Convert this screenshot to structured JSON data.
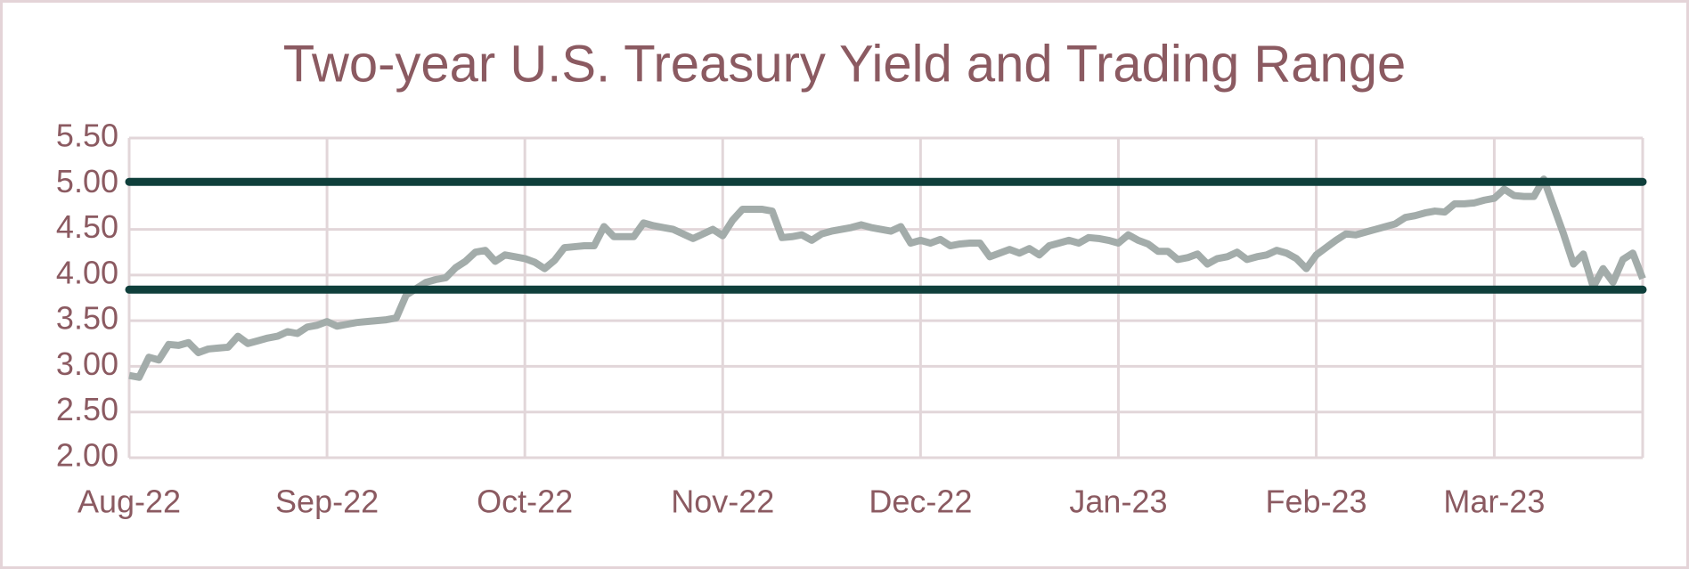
{
  "chart_data": {
    "type": "line",
    "title": "Two-year U.S. Treasury Yield and Trading Range",
    "categories": [
      "Aug-22",
      null,
      null,
      null,
      null,
      null,
      null,
      null,
      null,
      null,
      null,
      null,
      null,
      null,
      null,
      null,
      null,
      null,
      null,
      null,
      "Sep-22",
      null,
      null,
      null,
      null,
      null,
      null,
      null,
      null,
      null,
      null,
      null,
      null,
      null,
      null,
      null,
      null,
      null,
      null,
      null,
      "Oct-22",
      null,
      null,
      null,
      null,
      null,
      null,
      null,
      null,
      null,
      null,
      null,
      null,
      null,
      null,
      null,
      null,
      null,
      null,
      null,
      "Nov-22",
      null,
      null,
      null,
      null,
      null,
      null,
      null,
      null,
      null,
      null,
      null,
      null,
      null,
      null,
      null,
      null,
      null,
      null,
      null,
      "Dec-22",
      null,
      null,
      null,
      null,
      null,
      null,
      null,
      null,
      null,
      null,
      null,
      null,
      null,
      null,
      null,
      null,
      null,
      null,
      null,
      "Jan-23",
      null,
      null,
      null,
      null,
      null,
      null,
      null,
      null,
      null,
      null,
      null,
      null,
      null,
      null,
      null,
      null,
      null,
      null,
      null,
      "Feb-23",
      null,
      null,
      null,
      null,
      null,
      null,
      null,
      null,
      null,
      null,
      null,
      null,
      null,
      null,
      null,
      null,
      null,
      "Mar-23",
      null,
      null,
      null,
      null,
      null,
      null,
      null,
      null,
      null,
      null,
      null,
      null,
      null,
      null,
      null
    ],
    "values": [
      2.9,
      2.88,
      3.1,
      3.07,
      3.24,
      3.23,
      3.26,
      3.15,
      3.19,
      3.2,
      3.21,
      3.33,
      3.25,
      3.28,
      3.31,
      3.33,
      3.38,
      3.36,
      3.43,
      3.45,
      3.49,
      3.44,
      3.46,
      3.48,
      3.49,
      3.5,
      3.51,
      3.53,
      3.78,
      3.85,
      3.92,
      3.95,
      3.97,
      4.08,
      4.15,
      4.25,
      4.27,
      4.15,
      4.22,
      4.2,
      4.18,
      4.14,
      4.07,
      4.16,
      4.3,
      4.31,
      4.32,
      4.32,
      4.53,
      4.42,
      4.42,
      4.42,
      4.57,
      4.54,
      4.52,
      4.5,
      4.45,
      4.4,
      4.45,
      4.5,
      4.43,
      4.6,
      4.72,
      4.72,
      4.72,
      4.7,
      4.41,
      4.42,
      4.44,
      4.38,
      4.45,
      4.48,
      4.5,
      4.52,
      4.55,
      4.52,
      4.5,
      4.48,
      4.53,
      4.35,
      4.38,
      4.35,
      4.39,
      4.32,
      4.34,
      4.35,
      4.35,
      4.2,
      4.24,
      4.28,
      4.24,
      4.29,
      4.22,
      4.32,
      4.35,
      4.38,
      4.35,
      4.41,
      4.4,
      4.38,
      4.35,
      4.44,
      4.38,
      4.34,
      4.26,
      4.26,
      4.17,
      4.19,
      4.23,
      4.12,
      4.18,
      4.2,
      4.25,
      4.17,
      4.2,
      4.22,
      4.27,
      4.24,
      4.18,
      4.07,
      4.22,
      4.3,
      4.38,
      4.45,
      4.44,
      4.47,
      4.5,
      4.53,
      4.56,
      4.63,
      4.65,
      4.68,
      4.7,
      4.69,
      4.78,
      4.78,
      4.79,
      4.82,
      4.84,
      4.94,
      4.87,
      4.86,
      4.86,
      5.05,
      4.75,
      4.45,
      4.12,
      4.23,
      3.87,
      4.07,
      3.92,
      4.17,
      4.24,
      3.96
    ],
    "color": "#a3acaa",
    "reference_lines": [
      5.02,
      3.84
    ],
    "reference_color": "#0f3f3b",
    "ylim": [
      2,
      5.5
    ],
    "yticks": [
      {
        "value": 2,
        "label": "2.00"
      },
      {
        "value": 2.5,
        "label": "2.50"
      },
      {
        "value": 3,
        "label": "3.00"
      },
      {
        "value": 3.5,
        "label": "3.50"
      },
      {
        "value": 4,
        "label": "4.00"
      },
      {
        "value": 4.5,
        "label": "4.50"
      },
      {
        "value": 5,
        "label": "5.00"
      },
      {
        "value": 5.5,
        "label": "5.50"
      }
    ],
    "grid": true
  }
}
